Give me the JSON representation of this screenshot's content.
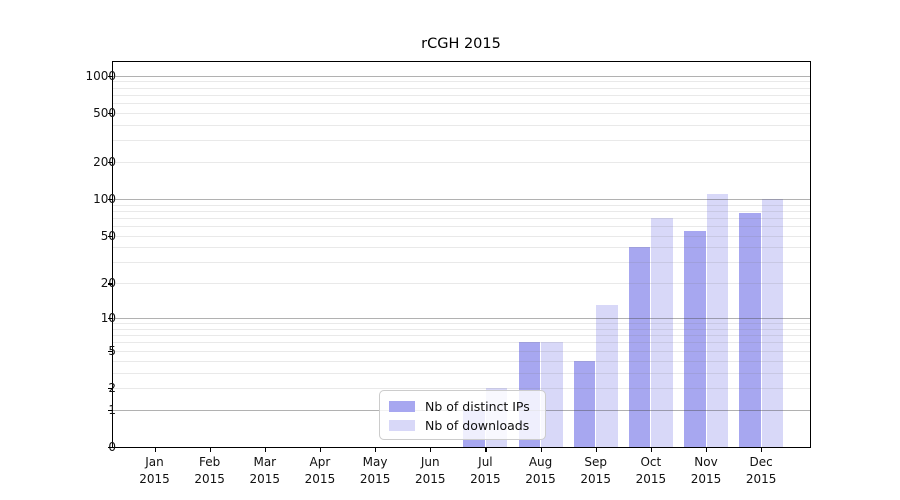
{
  "chart_data": {
    "type": "bar",
    "title": "rCGH 2015",
    "categories": [
      "Jan",
      "Feb",
      "Mar",
      "Apr",
      "May",
      "Jun",
      "Jul",
      "Aug",
      "Sep",
      "Oct",
      "Nov",
      "Dec"
    ],
    "category_year": "2015",
    "series": [
      {
        "name": "Nb of distinct IPs",
        "color": "#a7a7f0",
        "values": [
          0,
          0,
          0,
          0,
          0,
          0,
          1,
          6,
          4,
          40,
          55,
          77
        ]
      },
      {
        "name": "Nb of downloads",
        "color": "#d8d8f8",
        "values": [
          0,
          0,
          0,
          0,
          0,
          0,
          2,
          6,
          13,
          70,
          110,
          100
        ]
      }
    ],
    "xlabel": "",
    "ylabel": "",
    "y_scale": "log1p",
    "y_ticks": [
      0,
      1,
      2,
      5,
      10,
      20,
      50,
      100,
      200,
      500,
      1000
    ],
    "major_grid_values": [
      1,
      10,
      100,
      1000
    ],
    "minor_grid_values": [
      2,
      3,
      4,
      5,
      6,
      7,
      8,
      9,
      20,
      30,
      40,
      50,
      60,
      70,
      80,
      90,
      200,
      300,
      400,
      500,
      600,
      700,
      800,
      900
    ],
    "ylim": [
      0,
      1282
    ],
    "grid": "on",
    "legend_position": "bottom-center"
  },
  "colors": {
    "major_gridline": "#a8a8a8",
    "minor_gridline": "#e8e8e8",
    "axis": "#000000",
    "background": "#ffffff"
  }
}
